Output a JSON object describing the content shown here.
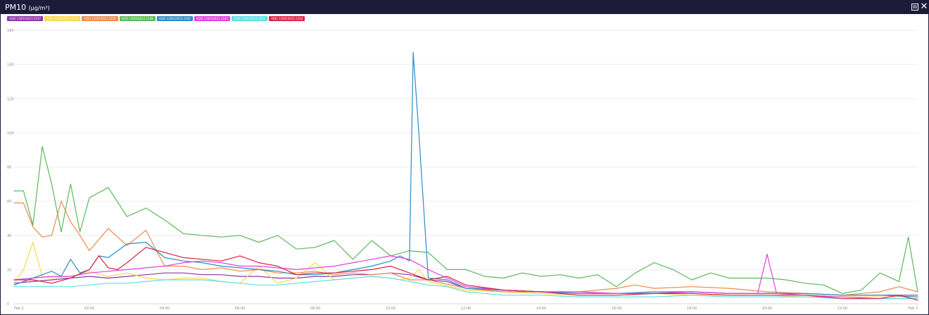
{
  "window": {
    "title": "PM10",
    "title_unit": "(μg/m³)",
    "icons": [
      "export-icon",
      "close-icon"
    ],
    "titlebar_color": "#1e1b3a"
  },
  "chart_data": {
    "type": "line",
    "ylim": [
      0,
      160
    ],
    "yticks": [
      "0",
      "20",
      "40",
      "60",
      "80",
      "100",
      "120",
      "140",
      "160"
    ],
    "xticks": [
      "Feb 2",
      "02:00",
      "04:00",
      "06:00",
      "08:00",
      "10:00",
      "12:00",
      "14:00",
      "16:00",
      "18:00",
      "20:00",
      "22:00",
      "Feb 3"
    ],
    "xlim_hours": [
      0,
      24
    ],
    "grid": true,
    "legend_position": "top-left",
    "series": [
      {
        "name": "AQIS 130010023 2197",
        "color": "#8a35a8",
        "x": [
          0,
          0.5,
          1,
          1.5,
          2,
          2.5,
          3,
          3.5,
          4,
          4.5,
          5,
          5.5,
          6,
          6.5,
          7,
          7.5,
          8,
          8.5,
          9,
          9.5,
          10,
          10.5,
          11,
          11.5,
          12,
          13,
          14,
          15,
          16,
          17,
          18,
          19,
          20,
          21,
          22,
          23,
          24
        ],
        "values": [
          12,
          13,
          14,
          15,
          16,
          15,
          16,
          17,
          18,
          18,
          17,
          17,
          16,
          16,
          15,
          15,
          16,
          16,
          17,
          17,
          18,
          17,
          14,
          13,
          9,
          8,
          7,
          6,
          6,
          6,
          7,
          6,
          6,
          6,
          5,
          5,
          5
        ]
      },
      {
        "name": "AQIS 130010023 2174",
        "color": "#f7d94c",
        "x": [
          0,
          0.25,
          0.5,
          0.75,
          1,
          1.5,
          2,
          2.5,
          3,
          3.5,
          4,
          4.5,
          5,
          5.5,
          6,
          6.5,
          7,
          7.5,
          8,
          8.5,
          9,
          9.5,
          10,
          10.25,
          10.5,
          10.75,
          11,
          12,
          13,
          14,
          15,
          16,
          17,
          18,
          19,
          20,
          21,
          22,
          23,
          24
        ],
        "values": [
          12,
          20,
          36,
          16,
          15,
          16,
          19,
          16,
          18,
          15,
          14,
          15,
          15,
          13,
          12,
          22,
          12,
          15,
          24,
          14,
          15,
          16,
          15,
          14,
          15,
          20,
          13,
          8,
          7,
          6,
          5,
          5,
          6,
          5,
          5,
          5,
          4,
          4,
          4,
          4
        ]
      },
      {
        "name": "AQIS 130010023 2159",
        "color": "#ed8c4c",
        "x": [
          0,
          0.25,
          0.5,
          0.75,
          1,
          1.25,
          1.5,
          1.75,
          2,
          2.5,
          3,
          3.5,
          4,
          4.5,
          5,
          5.5,
          6,
          6.5,
          7,
          7.5,
          8,
          8.5,
          9,
          9.5,
          10,
          10.5,
          11,
          12,
          13,
          14,
          15,
          16,
          16.5,
          17,
          18,
          19,
          20,
          21,
          22,
          23,
          23.5,
          24
        ],
        "values": [
          59,
          59,
          45,
          39,
          40,
          60,
          48,
          40,
          31,
          44,
          34,
          43,
          22,
          22,
          20,
          21,
          19,
          20,
          18,
          18,
          19,
          17,
          18,
          17,
          18,
          14,
          14,
          9,
          7,
          7,
          7,
          9,
          11,
          9,
          10,
          9,
          7,
          6,
          5,
          7,
          10,
          7
        ]
      },
      {
        "name": "AQIS 130010023 2249",
        "color": "#5cb85c",
        "x": [
          0,
          0.25,
          0.5,
          0.75,
          1,
          1.25,
          1.5,
          1.75,
          2,
          2.5,
          3,
          3.5,
          4,
          4.5,
          5,
          5.5,
          6,
          6.5,
          7,
          7.5,
          8,
          8.5,
          9,
          9.5,
          10,
          10.5,
          11,
          11.5,
          12,
          12.5,
          13,
          13.5,
          14,
          14.5,
          15,
          15.5,
          16,
          16.5,
          17,
          17.5,
          18,
          18.5,
          19,
          19.5,
          20,
          20.5,
          21,
          21.5,
          22,
          22.5,
          23,
          23.5,
          23.75,
          24
        ],
        "values": [
          66,
          66,
          46,
          92,
          70,
          42,
          70,
          42,
          62,
          68,
          51,
          56,
          49,
          41,
          40,
          39,
          40,
          36,
          40,
          32,
          33,
          37,
          26,
          37,
          28,
          31,
          30,
          20,
          20,
          16,
          15,
          18,
          16,
          17,
          15,
          17,
          10,
          18,
          24,
          20,
          14,
          18,
          15,
          15,
          15,
          14,
          12,
          11,
          6,
          8,
          18,
          13,
          39,
          7
        ]
      },
      {
        "name": "AQIS 130010023 2245",
        "color": "#2b8dc4",
        "x": [
          0,
          0.5,
          1,
          1.25,
          1.5,
          1.75,
          2,
          2.25,
          2.5,
          3,
          3.5,
          4,
          4.5,
          5,
          5.5,
          6,
          6.5,
          7,
          7.5,
          8,
          8.5,
          9,
          9.5,
          10,
          10.25,
          10.5,
          10.6,
          10.75,
          11,
          11.5,
          12,
          13,
          14,
          15,
          16,
          17,
          18,
          19,
          20,
          21,
          22,
          23,
          24
        ],
        "values": [
          11,
          15,
          19,
          16,
          26,
          18,
          20,
          28,
          27,
          35,
          36,
          27,
          25,
          24,
          22,
          21,
          20,
          19,
          17,
          17,
          18,
          20,
          22,
          25,
          28,
          25,
          147,
          100,
          15,
          14,
          9,
          8,
          7,
          6,
          6,
          7,
          7,
          6,
          6,
          6,
          5,
          5,
          4
        ]
      },
      {
        "name": "AQIS 130010023 2242",
        "color": "#e040e0",
        "x": [
          0,
          0.5,
          1,
          1.5,
          2,
          2.5,
          3,
          3.5,
          4,
          4.5,
          5,
          5.5,
          6,
          6.5,
          7,
          7.5,
          8,
          8.5,
          9,
          9.5,
          10,
          10.5,
          11,
          11.5,
          12,
          13,
          14,
          15,
          16,
          17,
          18,
          19,
          19.75,
          20,
          20.25,
          21,
          22,
          23,
          24
        ],
        "values": [
          14,
          15,
          16,
          16,
          18,
          19,
          20,
          21,
          22,
          24,
          25,
          24,
          22,
          22,
          21,
          20,
          21,
          22,
          24,
          26,
          28,
          26,
          20,
          15,
          10,
          8,
          7,
          7,
          6,
          6,
          7,
          6,
          6,
          29,
          6,
          5,
          4,
          3,
          3
        ]
      },
      {
        "name": "AQIS 130010023 2031",
        "color": "#5ce0e0",
        "x": [
          0,
          0.5,
          1,
          1.5,
          2,
          2.5,
          3,
          3.5,
          4,
          4.5,
          5,
          5.5,
          6,
          6.5,
          7,
          7.5,
          8,
          8.5,
          9,
          9.5,
          10,
          10.5,
          11,
          11.5,
          12,
          13,
          14,
          15,
          16,
          17,
          18,
          19,
          20,
          21,
          22,
          23,
          24
        ],
        "values": [
          10,
          10,
          10,
          10,
          11,
          12,
          12,
          13,
          14,
          14,
          14,
          13,
          12,
          11,
          11,
          12,
          13,
          14,
          15,
          16,
          15,
          13,
          11,
          10,
          7,
          5,
          5,
          4,
          4,
          4,
          5,
          4,
          4,
          4,
          3,
          3,
          3
        ]
      },
      {
        "name": "AQIS 130010023 2244",
        "color": "#d92347",
        "x": [
          0,
          0.5,
          1,
          1.5,
          2,
          2.25,
          2.5,
          2.75,
          3,
          3.5,
          4,
          4.5,
          5,
          5.5,
          6,
          6.5,
          7,
          7.5,
          8,
          8.5,
          9,
          9.5,
          10,
          10.5,
          11,
          11.5,
          12,
          13,
          14,
          15,
          16,
          17,
          18,
          19,
          20,
          21,
          22,
          23,
          23.5,
          24
        ],
        "values": [
          14,
          14,
          12,
          15,
          20,
          28,
          21,
          20,
          24,
          33,
          30,
          27,
          26,
          25,
          28,
          24,
          22,
          17,
          18,
          18,
          19,
          20,
          22,
          18,
          14,
          16,
          11,
          8,
          7,
          5,
          5,
          6,
          6,
          5,
          5,
          5,
          3,
          3,
          5,
          2
        ]
      }
    ]
  }
}
